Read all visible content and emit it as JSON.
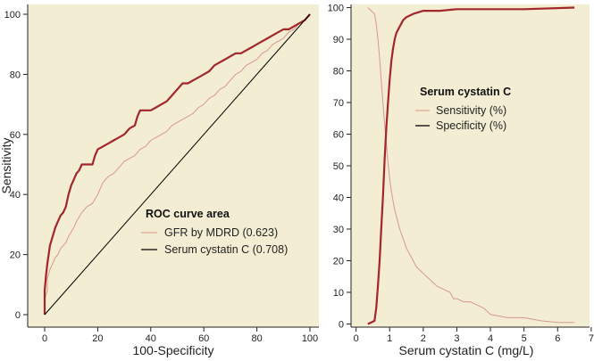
{
  "colors": {
    "background": "#f2edd3",
    "thick_curve": "#a3262a",
    "thin_curve": "#d9988f",
    "diagonal": "#000000",
    "axis": "#222222"
  },
  "chart_data": [
    {
      "type": "line",
      "xlabel": "100-Specificity",
      "ylabel": "Sensitivity",
      "xlim": [
        0,
        100
      ],
      "ylim": [
        0,
        100
      ],
      "xticks": [
        0,
        20,
        40,
        60,
        80,
        100
      ],
      "yticks": [
        0,
        20,
        40,
        60,
        80,
        100
      ],
      "grid": false,
      "legend": {
        "title": "ROC curve area",
        "placement": "lower-right",
        "entries": [
          {
            "label": "GFR by MDRD (0.623)",
            "style": "thin"
          },
          {
            "label": "Serum cystatin C (0.708)",
            "style": "line"
          }
        ]
      },
      "series": [
        {
          "name": "GFR by MDRD (0.623)",
          "style": "thin",
          "x": [
            0,
            0,
            1,
            1,
            2,
            3,
            4,
            5,
            6,
            8,
            9,
            11,
            12,
            14,
            16,
            18,
            20,
            22,
            24,
            26,
            28,
            30,
            32,
            34,
            36,
            38,
            40,
            42,
            44,
            46,
            48,
            50,
            52,
            54,
            56,
            58,
            60,
            62,
            64,
            66,
            68,
            70,
            72,
            74,
            76,
            78,
            80,
            82,
            84,
            86,
            88,
            90,
            92,
            94,
            96,
            98,
            100
          ],
          "y": [
            0,
            5,
            8,
            12,
            15,
            17,
            19,
            20,
            22,
            24,
            26,
            29,
            31,
            34,
            36,
            37,
            40,
            44,
            46,
            47,
            49,
            51,
            52,
            53,
            55,
            56,
            58,
            59,
            60,
            61,
            63,
            64,
            65,
            66,
            67,
            69,
            70,
            72,
            73,
            75,
            76,
            78,
            80,
            81,
            83,
            84,
            85,
            87,
            88,
            90,
            91,
            92,
            94,
            95,
            97,
            98,
            100
          ]
        },
        {
          "name": "Serum cystatin C (0.708)",
          "style": "thick",
          "x": [
            0,
            0,
            0.5,
            1,
            1.5,
            2,
            3,
            4,
            5,
            6,
            7,
            8,
            9,
            10,
            11,
            12,
            13,
            14,
            16,
            18,
            19,
            20,
            22,
            24,
            26,
            28,
            30,
            32,
            34,
            35,
            36,
            38,
            40,
            42,
            44,
            46,
            48,
            50,
            52,
            54,
            56,
            58,
            60,
            62,
            64,
            66,
            68,
            70,
            72,
            74,
            76,
            78,
            80,
            82,
            84,
            86,
            88,
            90,
            92,
            94,
            96,
            98,
            100
          ],
          "y": [
            0,
            8,
            13,
            17,
            20,
            23,
            26,
            29,
            31,
            33,
            34,
            36,
            40,
            43,
            45,
            47,
            48,
            50,
            50,
            50,
            53,
            55,
            56,
            57,
            58,
            59,
            60,
            62,
            63,
            66,
            68,
            68,
            68,
            69,
            70,
            71,
            73,
            75,
            77,
            77,
            78,
            79,
            80,
            81,
            83,
            84,
            85,
            86,
            87,
            87,
            88,
            89,
            90,
            91,
            92,
            93,
            94,
            95,
            95,
            96,
            97,
            98,
            100
          ]
        },
        {
          "name": "",
          "style": "diagonal",
          "x": [
            0,
            100
          ],
          "y": [
            0,
            100
          ]
        }
      ]
    },
    {
      "type": "line",
      "xlabel": "Serum cystatin C (mg/L)",
      "ylabel": "",
      "xlim": [
        -0.15,
        6.95
      ],
      "ylim": [
        -1,
        101
      ],
      "xticks": [
        0,
        1,
        2,
        3,
        4,
        5,
        6,
        7
      ],
      "yticks": [
        0,
        10,
        20,
        30,
        40,
        50,
        60,
        70,
        80,
        90,
        100
      ],
      "grid": false,
      "legend": {
        "title": "Serum cystatin C",
        "placement": "upper-center",
        "entries": [
          {
            "label": "Sensitivity (%)",
            "style": "thin"
          },
          {
            "label": "Specificity (%)",
            "style": "line"
          }
        ]
      },
      "series": [
        {
          "name": "Sensitivity (%)",
          "style": "thin",
          "x": [
            0.35,
            0.45,
            0.55,
            0.6,
            0.65,
            0.7,
            0.75,
            0.8,
            0.85,
            0.9,
            0.95,
            1.0,
            1.05,
            1.1,
            1.15,
            1.2,
            1.3,
            1.4,
            1.5,
            1.6,
            1.7,
            1.8,
            1.9,
            2.0,
            2.2,
            2.4,
            2.6,
            2.8,
            2.9,
            3.0,
            3.2,
            3.4,
            3.6,
            3.8,
            4.0,
            4.5,
            5.0,
            5.5,
            6.0,
            6.5
          ],
          "y": [
            100,
            99,
            98,
            95,
            90,
            84,
            77,
            70,
            63,
            57,
            51,
            46,
            42,
            39,
            36,
            34,
            30,
            27,
            24,
            22,
            20,
            18,
            17,
            16,
            14,
            12,
            11,
            10,
            8,
            8,
            7,
            7,
            6,
            5,
            3,
            2,
            2,
            1,
            0.5,
            0.5
          ]
        },
        {
          "name": "Specificity (%)",
          "style": "thick",
          "x": [
            0.35,
            0.45,
            0.55,
            0.6,
            0.65,
            0.7,
            0.75,
            0.8,
            0.85,
            0.9,
            0.95,
            1.0,
            1.05,
            1.1,
            1.15,
            1.2,
            1.3,
            1.4,
            1.5,
            1.7,
            2.0,
            2.5,
            3.0,
            4.0,
            5.0,
            6.5
          ],
          "y": [
            0,
            0.5,
            1,
            5,
            12,
            20,
            30,
            40,
            52,
            62,
            70,
            77,
            83,
            87,
            90,
            92,
            94,
            96,
            97,
            98,
            99,
            99,
            99.5,
            99.5,
            99.5,
            100
          ]
        }
      ]
    }
  ]
}
